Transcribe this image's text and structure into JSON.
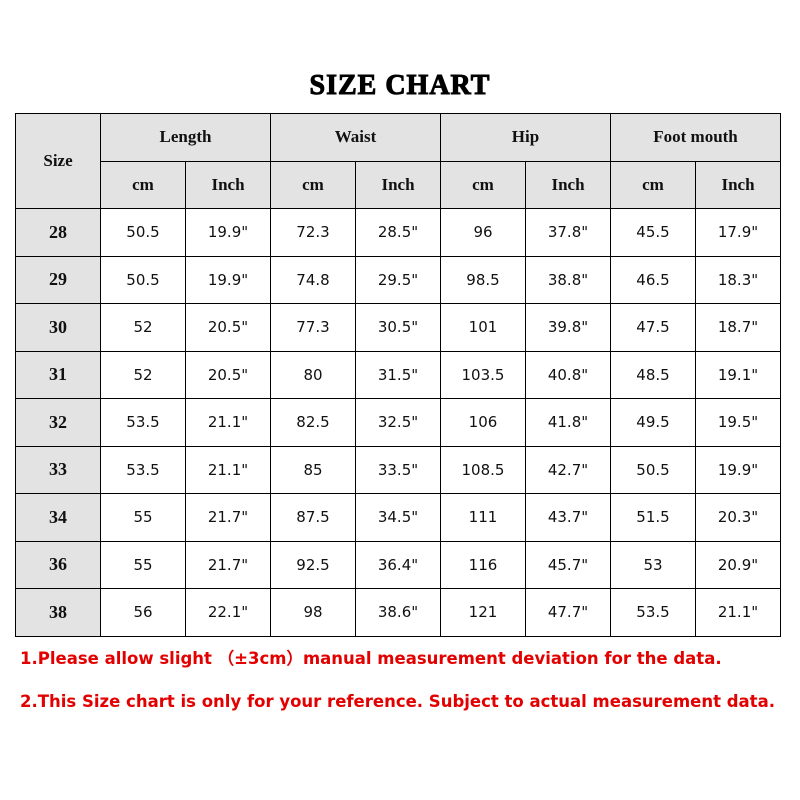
{
  "title": "SIZE CHART",
  "header": {
    "size": "Size",
    "groups": [
      "Length",
      "Waist",
      "Hip",
      "Foot mouth"
    ],
    "units": [
      "cm",
      "Inch"
    ]
  },
  "rows": [
    [
      "28",
      "50.5",
      "19.9\"",
      "72.3",
      "28.5\"",
      "96",
      "37.8\"",
      "45.5",
      "17.9\""
    ],
    [
      "29",
      "50.5",
      "19.9\"",
      "74.8",
      "29.5\"",
      "98.5",
      "38.8\"",
      "46.5",
      "18.3\""
    ],
    [
      "30",
      "52",
      "20.5\"",
      "77.3",
      "30.5\"",
      "101",
      "39.8\"",
      "47.5",
      "18.7\""
    ],
    [
      "31",
      "52",
      "20.5\"",
      "80",
      "31.5\"",
      "103.5",
      "40.8\"",
      "48.5",
      "19.1\""
    ],
    [
      "32",
      "53.5",
      "21.1\"",
      "82.5",
      "32.5\"",
      "106",
      "41.8\"",
      "49.5",
      "19.5\""
    ],
    [
      "33",
      "53.5",
      "21.1\"",
      "85",
      "33.5\"",
      "108.5",
      "42.7\"",
      "50.5",
      "19.9\""
    ],
    [
      "34",
      "55",
      "21.7\"",
      "87.5",
      "34.5\"",
      "111",
      "43.7\"",
      "51.5",
      "20.3\""
    ],
    [
      "36",
      "55",
      "21.7\"",
      "92.5",
      "36.4\"",
      "116",
      "45.7\"",
      "53",
      "20.9\""
    ],
    [
      "38",
      "56",
      "22.1\"",
      "98",
      "38.6\"",
      "121",
      "47.7\"",
      "53.5",
      "21.1\""
    ]
  ],
  "notes": [
    "1.Please allow slight （±3cm）manual measurement deviation for the data.",
    "2.This Size chart is only for your reference. Subject to actual measurement data."
  ],
  "colors": {
    "header_bg": "#e3e3e3",
    "note": "#e30000"
  }
}
